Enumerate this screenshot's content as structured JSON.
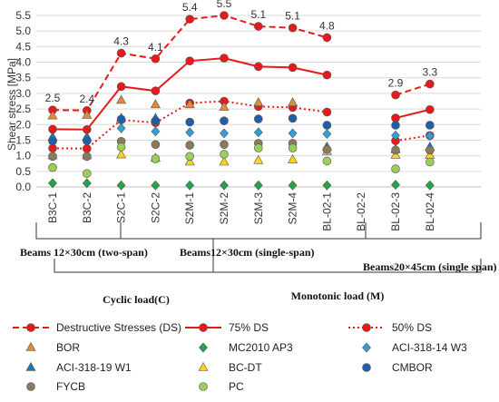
{
  "chart_data": {
    "type": "line",
    "ylabel": "Shear stress [MPa]",
    "ylim": [
      0,
      5.5
    ],
    "yticks": [
      0.0,
      0.5,
      1.0,
      1.5,
      2.0,
      2.5,
      3.0,
      3.5,
      4.0,
      4.5,
      5.0,
      5.5
    ],
    "grid": true,
    "categories": [
      "B3C-1",
      "B3C-2",
      "S2C-1",
      "S2C-2",
      "S2M-1",
      "S2M-2",
      "S2M-3",
      "S2M-4",
      "BL-02-1",
      "BL-02-2",
      "BL-02-3",
      "BL-02-4"
    ],
    "data_labels": [
      "2.5",
      "2.4",
      "4.3",
      "4.1",
      "5.4",
      "5.5",
      "5.1",
      "5.1",
      "4.8",
      "",
      "2.9",
      "3.3"
    ],
    "series": [
      {
        "name": "Destructive Stresses (DS)",
        "color": "#e8191b",
        "marker": "circle",
        "line": "dashed",
        "values": [
          2.47,
          2.45,
          4.29,
          4.11,
          5.38,
          5.5,
          5.15,
          5.1,
          4.79,
          null,
          2.95,
          3.3
        ]
      },
      {
        "name": "75% DS",
        "color": "#e8191b",
        "marker": "circle",
        "line": "solid",
        "values": [
          1.85,
          1.84,
          3.22,
          3.08,
          4.04,
          4.13,
          3.86,
          3.83,
          3.59,
          null,
          2.21,
          2.48
        ]
      },
      {
        "name": "50% DS",
        "color": "#e8191b",
        "marker": "circle",
        "line": "dotted",
        "values": [
          1.24,
          1.23,
          2.15,
          2.06,
          2.69,
          2.75,
          2.58,
          2.55,
          2.4,
          null,
          1.48,
          1.65
        ]
      },
      {
        "name": "BOR",
        "color": "#e08a3c",
        "marker": "triangle",
        "values": [
          2.28,
          2.3,
          2.78,
          2.64,
          2.64,
          2.56,
          2.7,
          2.7,
          null,
          null,
          null,
          null
        ]
      },
      {
        "name": "MC2010 AP3",
        "color": "#22a447",
        "marker": "diamond",
        "values": [
          0.12,
          0.12,
          0.05,
          0.05,
          0.05,
          0.05,
          0.05,
          0.05,
          0.05,
          null,
          0.07,
          0.05
        ]
      },
      {
        "name": "ACI-318-14 W3",
        "color": "#2e9fd8",
        "marker": "diamond",
        "values": [
          1.48,
          1.52,
          1.88,
          1.78,
          1.75,
          1.72,
          1.75,
          1.72,
          1.7,
          null,
          1.65,
          1.64
        ]
      },
      {
        "name": "ACI-318-19 W1",
        "color": "#1f78b4",
        "marker": "triangle",
        "values": [
          1.6,
          1.6,
          2.2,
          2.2,
          null,
          null,
          null,
          null,
          1.28,
          null,
          1.2,
          1.28
        ]
      },
      {
        "name": "BC-DT",
        "color": "#ffd21a",
        "marker": "triangle",
        "values": [
          1.0,
          1.0,
          1.03,
          0.92,
          0.8,
          0.8,
          0.85,
          0.87,
          1.14,
          null,
          1.02,
          1.02
        ]
      },
      {
        "name": "CMBOR",
        "color": "#1f5fa6",
        "marker": "circle",
        "values": [
          1.47,
          1.48,
          2.17,
          2.12,
          2.08,
          2.12,
          2.18,
          2.2,
          1.98,
          null,
          1.98,
          1.98
        ]
      },
      {
        "name": "FYCB",
        "color": "#8a7a5e",
        "marker": "circle",
        "values": [
          0.98,
          0.98,
          1.46,
          1.36,
          1.34,
          1.36,
          1.4,
          1.4,
          1.2,
          null,
          1.18,
          1.18
        ]
      },
      {
        "name": "PC",
        "color": "#9acd5a",
        "marker": "circle",
        "values": [
          0.62,
          0.43,
          1.28,
          0.9,
          0.98,
          1.05,
          1.25,
          1.25,
          0.83,
          null,
          0.58,
          0.8
        ]
      }
    ],
    "group_labels": [
      {
        "text": "Beams 12×30cm (two-span)"
      },
      {
        "text": "Beams12×30cm (single-span)"
      },
      {
        "text": "Beams20×45cm (single span)"
      }
    ],
    "load_labels": [
      {
        "text": "Cyclic load(C)"
      },
      {
        "text": "Monotonic load (M)"
      }
    ]
  }
}
